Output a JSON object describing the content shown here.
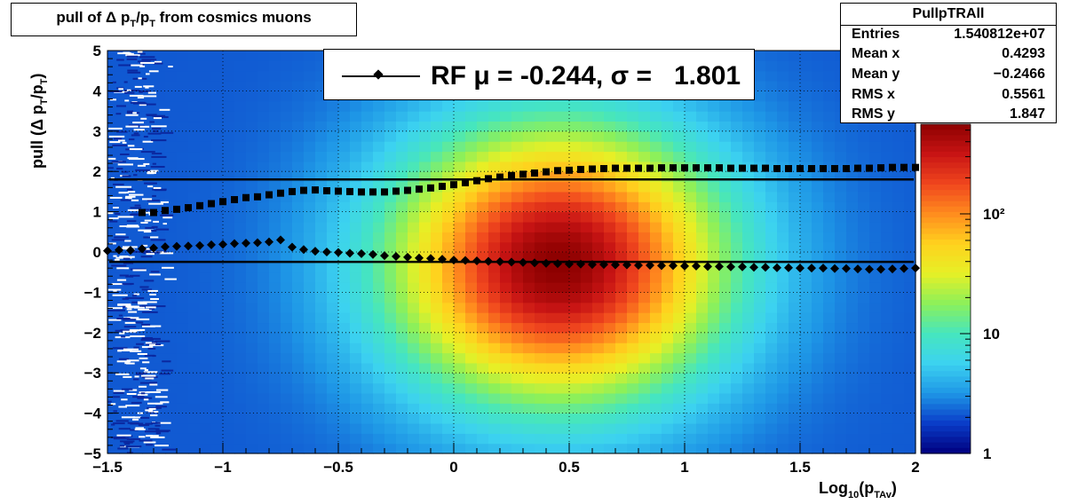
{
  "title": "pull of Δ p",
  "title_sub1": "T",
  "title_mid": "/p",
  "title_sub2": "T",
  "title_end": " from cosmics muons",
  "stats": {
    "name": "PullpTRAll",
    "rows": [
      {
        "key": "Entries",
        "value": "1.540812e+07"
      },
      {
        "key": "Mean x",
        "value": "0.4293"
      },
      {
        "key": "Mean y",
        "value": "−0.2466"
      },
      {
        "key": "RMS x",
        "value": "0.5561"
      },
      {
        "key": "RMS y",
        "value": "1.847"
      }
    ]
  },
  "legend": {
    "text": "RF μ = -0.244, σ =   1.801"
  },
  "ylabel": {
    "main": "pull (Δ p",
    "sub1": "T",
    "mid": "/p",
    "sub2": "T",
    "end": ")"
  },
  "xlabel": {
    "main": "Log",
    "sub1": "10",
    "mid": "(p",
    "sub2": "TAv",
    "end": ")"
  },
  "chart_data": {
    "type": "heatmap",
    "xlim": [
      -1.5,
      2
    ],
    "ylim": [
      -5,
      5
    ],
    "x_ticks": [
      "−1.5",
      "−1",
      "−0.5",
      "0",
      "0.5",
      "1",
      "1.5",
      "2"
    ],
    "x_tick_values": [
      -1.5,
      -1,
      -0.5,
      0,
      0.5,
      1,
      1.5,
      2
    ],
    "y_ticks": [
      "−5",
      "−4",
      "−3",
      "−2",
      "−1",
      "0",
      "1",
      "2",
      "3",
      "4",
      "5"
    ],
    "y_tick_values": [
      -5,
      -4,
      -3,
      -2,
      -1,
      0,
      1,
      2,
      3,
      4,
      5
    ],
    "z_scale": "log",
    "z_ticks": [
      "1",
      "10",
      "10²"
    ],
    "z_tick_values": [
      1,
      10,
      100
    ],
    "grid": true,
    "colormap": [
      "#00007f",
      "#0a3cc8",
      "#1e96e6",
      "#3cd2f0",
      "#46e6be",
      "#8cf05a",
      "#e6f026",
      "#ffd21e",
      "#ff8c1e",
      "#f0461e",
      "#c81414",
      "#8c0000"
    ],
    "hlines": [
      {
        "name": "sigma",
        "y": 1.801
      },
      {
        "name": "mu",
        "y": -0.244
      }
    ],
    "series": [
      {
        "name": "sigma",
        "marker": "square",
        "x": [
          -1.35,
          -1.3,
          -1.25,
          -1.2,
          -1.15,
          -1.1,
          -1.05,
          -1.0,
          -0.95,
          -0.9,
          -0.85,
          -0.8,
          -0.75,
          -0.7,
          -0.65,
          -0.6,
          -0.55,
          -0.5,
          -0.45,
          -0.4,
          -0.35,
          -0.3,
          -0.25,
          -0.2,
          -0.15,
          -0.1,
          -0.05,
          0.0,
          0.05,
          0.1,
          0.15,
          0.2,
          0.25,
          0.3,
          0.35,
          0.4,
          0.45,
          0.5,
          0.55,
          0.6,
          0.65,
          0.7,
          0.75,
          0.8,
          0.85,
          0.9,
          0.95,
          1.0,
          1.05,
          1.1,
          1.15,
          1.2,
          1.25,
          1.3,
          1.35,
          1.4,
          1.45,
          1.5,
          1.55,
          1.6,
          1.65,
          1.7,
          1.75,
          1.8,
          1.85,
          1.9,
          1.95,
          2.0
        ],
        "y": [
          0.98,
          0.98,
          1.03,
          1.06,
          1.1,
          1.15,
          1.2,
          1.25,
          1.3,
          1.35,
          1.37,
          1.42,
          1.46,
          1.5,
          1.53,
          1.54,
          1.52,
          1.51,
          1.5,
          1.49,
          1.49,
          1.49,
          1.51,
          1.53,
          1.56,
          1.59,
          1.63,
          1.67,
          1.72,
          1.77,
          1.82,
          1.86,
          1.9,
          1.93,
          1.96,
          1.99,
          2.02,
          2.03,
          2.05,
          2.06,
          2.07,
          2.08,
          2.08,
          2.08,
          2.08,
          2.09,
          2.09,
          2.09,
          2.09,
          2.09,
          2.09,
          2.08,
          2.08,
          2.08,
          2.08,
          2.07,
          2.07,
          2.07,
          2.07,
          2.07,
          2.07,
          2.07,
          2.08,
          2.08,
          2.09,
          2.1,
          2.1,
          2.1
        ]
      },
      {
        "name": "mu",
        "marker": "diamond",
        "x": [
          -1.5,
          -1.45,
          -1.4,
          -1.35,
          -1.3,
          -1.25,
          -1.2,
          -1.15,
          -1.1,
          -1.05,
          -1.0,
          -0.95,
          -0.9,
          -0.85,
          -0.8,
          -0.75,
          -0.7,
          -0.65,
          -0.6,
          -0.55,
          -0.5,
          -0.45,
          -0.4,
          -0.35,
          -0.3,
          -0.25,
          -0.2,
          -0.15,
          -0.1,
          -0.05,
          0.0,
          0.05,
          0.1,
          0.15,
          0.2,
          0.25,
          0.3,
          0.35,
          0.4,
          0.45,
          0.5,
          0.55,
          0.6,
          0.65,
          0.7,
          0.75,
          0.8,
          0.85,
          0.9,
          0.95,
          1.0,
          1.05,
          1.1,
          1.15,
          1.2,
          1.25,
          1.3,
          1.35,
          1.4,
          1.45,
          1.5,
          1.55,
          1.6,
          1.65,
          1.7,
          1.75,
          1.8,
          1.85,
          1.9,
          1.95,
          2.0
        ],
        "y": [
          0.03,
          0.05,
          0.04,
          0.08,
          0.1,
          0.13,
          0.14,
          0.15,
          0.16,
          0.18,
          0.19,
          0.21,
          0.22,
          0.23,
          0.25,
          0.3,
          0.12,
          0.06,
          0.02,
          0.0,
          -0.01,
          -0.03,
          -0.04,
          -0.06,
          -0.09,
          -0.11,
          -0.13,
          -0.15,
          -0.16,
          -0.18,
          -0.2,
          -0.21,
          -0.22,
          -0.23,
          -0.24,
          -0.25,
          -0.26,
          -0.27,
          -0.28,
          -0.29,
          -0.3,
          -0.3,
          -0.31,
          -0.31,
          -0.32,
          -0.32,
          -0.33,
          -0.33,
          -0.34,
          -0.34,
          -0.35,
          -0.35,
          -0.36,
          -0.36,
          -0.37,
          -0.37,
          -0.38,
          -0.38,
          -0.39,
          -0.39,
          -0.4,
          -0.4,
          -0.4,
          -0.41,
          -0.41,
          -0.42,
          -0.43,
          -0.43,
          -0.42,
          -0.41,
          -0.4
        ]
      }
    ]
  }
}
